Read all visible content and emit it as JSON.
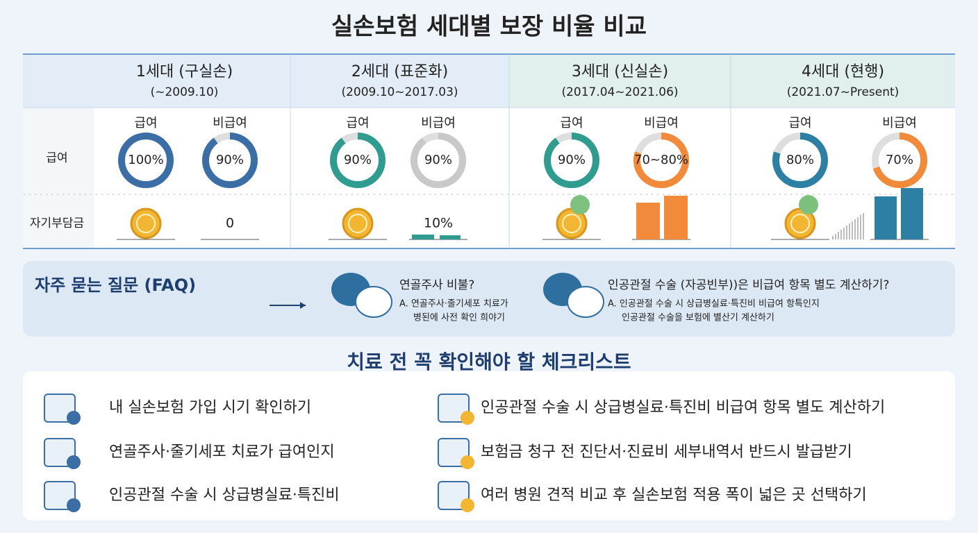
{
  "title": "실손보험 세대별 보장 비율 비교",
  "row_labels": [
    "급여",
    "자기부담금"
  ],
  "generations": [
    {
      "name": "1세대 (구실손)",
      "period": "(~2009.10)",
      "donuts": [
        {
          "label": "급여",
          "value": 100,
          "value_label": "100%",
          "color": "#3a6ea5"
        },
        {
          "label": "비급여",
          "value": 90,
          "value_label": "90%",
          "color": "#3a6ea5"
        }
      ],
      "self_pay": "0"
    },
    {
      "name": "2세대 (표준화)",
      "period": "(2009.10~2017.03)",
      "donuts": [
        {
          "label": "급여",
          "value": 90,
          "value_label": "90%",
          "color": "#2f9c8f"
        },
        {
          "label": "비급여",
          "value": 90,
          "value_label": "90%",
          "color": "#c9c9c9"
        }
      ],
      "self_pay": "10%"
    },
    {
      "name": "3세대 (신실손)",
      "period": "(2017.04~2021.06)",
      "donuts": [
        {
          "label": "급여",
          "value": 90,
          "value_label": "90%",
          "color": "#2f9c8f"
        },
        {
          "label": "비급여",
          "value": 80,
          "value_label": "70~80%",
          "color": "#f28a3c"
        }
      ]
    },
    {
      "name": "4세대 (현행)",
      "period": "(2021.07~Present)",
      "donuts": [
        {
          "label": "급여",
          "value": 80,
          "value_label": "80%",
          "color": "#2d7fa3"
        },
        {
          "label": "비급여",
          "value": 70,
          "value_label": "70%",
          "color": "#f28a3c"
        }
      ]
    }
  ],
  "faq": {
    "title": "자주 묻는 질문 (FAQ)",
    "items": [
      {
        "question": "연골주사 비불?",
        "answer": [
          "A. 연골주사·줄기세포 치료가",
          "병된에 사전 확인 희야기"
        ]
      },
      {
        "question": "인공관절 수술 (자공빈부))은 비급여 항목 별도 계산하기?",
        "answer": [
          "A. 인공관절 수술 시 상급병실료·특진비 비급여 항특인지",
          "인공관절 수술을 보험에 별산기 계산하기"
        ]
      }
    ]
  },
  "checklist": {
    "title": "치료 전 꼭 확인해야 할 체크리스트",
    "left": [
      "내 실손보험 가입 시기 확인하기",
      "연골주사·줄기세포 치료가 급여인지",
      "인공관절 수술 시 상급병실료·특진비"
    ],
    "right": [
      "인공관절 수술 시 상급병실료·특진비 비급여 항목 별도 계산하기",
      "보험금 청구 전 진단서·진료비 세부내역서 반드시 발급받기",
      "여러 병원 견적 비교 후 실손보험 적용 폭이 넓은 곳 선택하기"
    ]
  }
}
